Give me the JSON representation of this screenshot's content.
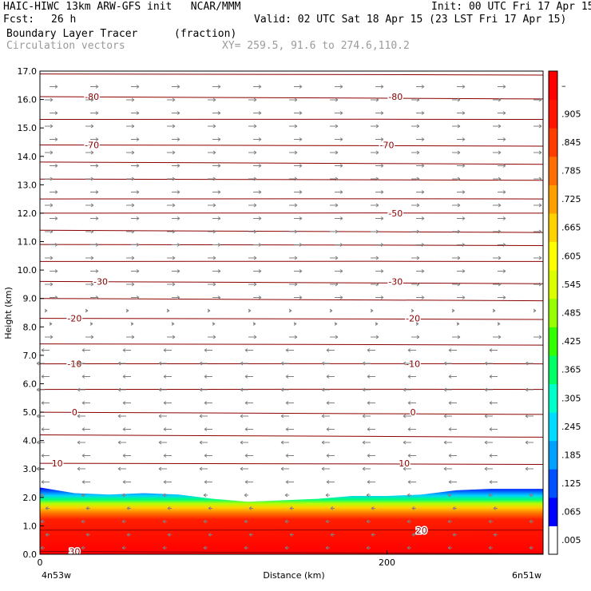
{
  "header": {
    "line1_left": "HAIC-HIWC 13km ARW-GFS init   NCAR/MMM",
    "line1_right": "Init: 00 UTC Fri 17 Apr 15",
    "fcst_label": "Fcst:",
    "fcst_value": "26 h",
    "valid": "Valid: 02 UTC Sat 18 Apr 15 (23 LST Fri 17 Apr 15)",
    "field": "Boundary Layer Tracer",
    "field_units": "(fraction)",
    "overlay": "Circulation vectors",
    "xy": "XY= 259.5, 91.6 to 274.6,110.2"
  },
  "colors": {
    "background": "#ffffff",
    "contour": "#8b0000",
    "vector": "#808080"
  },
  "chart_data": {
    "type": "heatmap",
    "ylabel": "Height (km)",
    "xlabel": "Distance (km)",
    "x_start_label": "4n53w",
    "x_end_label": "6n51w",
    "xlim": [
      0,
      290
    ],
    "ylim": [
      0.0,
      17.0
    ],
    "x_ticks": [
      0,
      200
    ],
    "y_ticks": [
      "0.0",
      "1.0",
      "2.0",
      "3.0",
      "4.0",
      "5.0",
      "6.0",
      "7.0",
      "8.0",
      "9.0",
      "10.0",
      "11.0",
      "12.0",
      "13.0",
      "14.0",
      "15.0",
      "16.0",
      "17.0"
    ],
    "colorbar": {
      "labels": [
        ".005",
        ".065",
        ".125",
        ".185",
        ".245",
        ".305",
        ".365",
        ".425",
        ".485",
        ".545",
        ".605",
        ".665",
        ".725",
        ".785",
        ".845",
        ".905",
        "–"
      ],
      "colors": [
        "#ffffff",
        "#0000ff",
        "#0050ff",
        "#00a0ff",
        "#00dcff",
        "#00ffc8",
        "#00ff64",
        "#32ff00",
        "#96ff00",
        "#dcff00",
        "#ffff00",
        "#ffd200",
        "#ffa000",
        "#ff6e00",
        "#ff3c00",
        "#ff1400",
        "#ff0000"
      ]
    },
    "tracer_top_km": [
      [
        0,
        2.35
      ],
      [
        20,
        2.15
      ],
      [
        40,
        2.1
      ],
      [
        60,
        2.15
      ],
      [
        80,
        2.1
      ],
      [
        100,
        1.95
      ],
      [
        120,
        1.85
      ],
      [
        140,
        1.9
      ],
      [
        160,
        1.95
      ],
      [
        180,
        2.05
      ],
      [
        200,
        2.05
      ],
      [
        220,
        2.1
      ],
      [
        240,
        2.25
      ],
      [
        260,
        2.3
      ],
      [
        290,
        2.3
      ]
    ],
    "temperature_contours": [
      {
        "label": "-80",
        "height_km": 16.1,
        "label_x": [
          30,
          205
        ]
      },
      {
        "label": "-70",
        "height_km": 14.4,
        "label_x": [
          30,
          200
        ]
      },
      {
        "label": "-50",
        "height_km": 12.0,
        "label_x": [
          205
        ]
      },
      {
        "label": "-30",
        "height_km": 9.6,
        "label_x": [
          35,
          205
        ]
      },
      {
        "label": "-20",
        "height_km": 8.3,
        "label_x": [
          20,
          215
        ]
      },
      {
        "label": "-10",
        "height_km": 6.7,
        "label_x": [
          20,
          215
        ]
      },
      {
        "label": "0",
        "height_km": 5.0,
        "label_x": [
          20,
          215
        ]
      },
      {
        "label": "10",
        "height_km": 3.2,
        "label_x": [
          10,
          210
        ]
      },
      {
        "label": "20",
        "height_km": 0.85,
        "label_x": [
          220
        ]
      },
      {
        "label": "30",
        "height_km": 0.1,
        "label_x": [
          20
        ]
      }
    ],
    "extra_contours_km": [
      16.9,
      15.3,
      13.8,
      13.2,
      12.5,
      11.4,
      10.9,
      10.3,
      9.0,
      7.4,
      5.8,
      4.2
    ]
  }
}
